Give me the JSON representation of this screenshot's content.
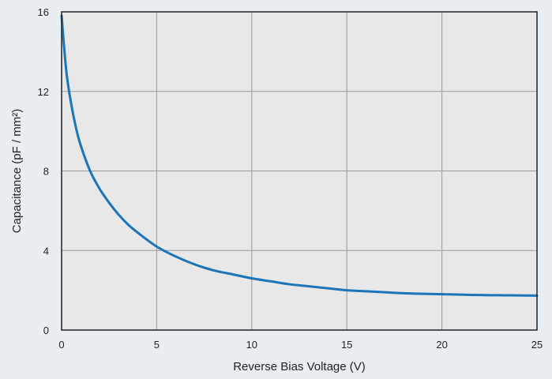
{
  "chart_data": {
    "type": "line",
    "title": "",
    "xlabel": "Reverse Bias Voltage (V)",
    "ylabel": "Capacitance (pF / mm²)",
    "xlim": [
      0,
      25
    ],
    "ylim": [
      0,
      16
    ],
    "x_ticks": [
      0,
      5,
      10,
      15,
      20,
      25
    ],
    "y_ticks": [
      0,
      4,
      8,
      12,
      16
    ],
    "x_tick_labels": [
      "0",
      "5",
      "10",
      "15",
      "20",
      "25"
    ],
    "y_tick_labels": [
      "0",
      "4",
      "8",
      "12",
      "16"
    ],
    "grid": true,
    "legend": "none",
    "series": [
      {
        "x": [
          0,
          0.25,
          0.5,
          0.75,
          1,
          1.5,
          2,
          2.5,
          3,
          3.5,
          4,
          5,
          6,
          7,
          8,
          9,
          10,
          11,
          12,
          13,
          14,
          15,
          16,
          17,
          18,
          19,
          20,
          21,
          22,
          23,
          24,
          25
        ],
        "y": [
          15.8,
          13.0,
          11.4,
          10.2,
          9.3,
          8.0,
          7.1,
          6.4,
          5.8,
          5.3,
          4.9,
          4.2,
          3.7,
          3.3,
          3.0,
          2.8,
          2.6,
          2.45,
          2.3,
          2.2,
          2.1,
          2.0,
          1.95,
          1.9,
          1.85,
          1.82,
          1.8,
          1.78,
          1.76,
          1.75,
          1.74,
          1.73
        ]
      }
    ],
    "colors": {
      "background": "#e9eef3",
      "plot_background": "#e7e8e7",
      "line": "#1b75b8",
      "grid": "#9a9a9a",
      "frame": "#222222"
    }
  }
}
